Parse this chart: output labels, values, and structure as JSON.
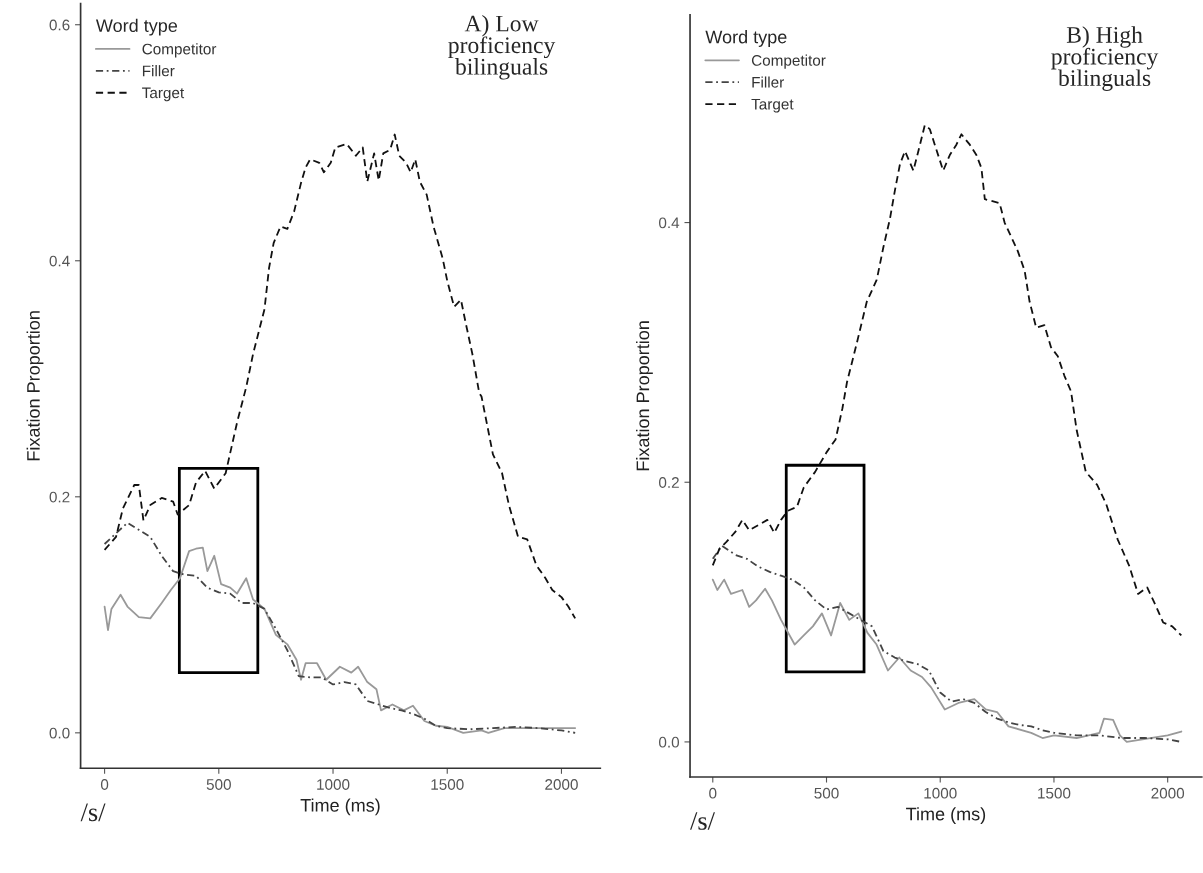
{
  "chart_data": [
    {
      "type": "line",
      "title": "A) Low\nproficiency\nbilinguals",
      "xlabel": "Time (ms)",
      "ylabel": "Fixation Proportion",
      "legend_title": "Word type",
      "legend": "top left",
      "grid": false,
      "annotations": [
        "/s/"
      ],
      "xlim": [
        -105,
        2170
      ],
      "ylim": [
        -0.03,
        0.618
      ],
      "xticks": [
        0,
        500,
        1000,
        1500,
        2000
      ],
      "yticks": [
        {
          "value": 0,
          "label": "0.0"
        },
        {
          "value": 0.2,
          "label": "0.2"
        },
        {
          "value": 0.4,
          "label": "0.4"
        },
        {
          "value": 0.6,
          "label": "0.6"
        }
      ],
      "series": [
        {
          "name": "Competitor",
          "color": "#999999",
          "line_style": "solid",
          "x": [
            0,
            15,
            30,
            70,
            100,
            150,
            200,
            250,
            290,
            330,
            370,
            400,
            430,
            450,
            480,
            510,
            550,
            580,
            620,
            650,
            700,
            750,
            800,
            840,
            860,
            880,
            930,
            970,
            1030,
            1080,
            1110,
            1150,
            1190,
            1210,
            1260,
            1310,
            1350,
            1400,
            1450,
            1500,
            1570,
            1650,
            1680,
            1750,
            2060
          ],
          "values": [
            0.107,
            0.087,
            0.105,
            0.117,
            0.107,
            0.098,
            0.097,
            0.11,
            0.121,
            0.131,
            0.154,
            0.156,
            0.157,
            0.137,
            0.15,
            0.126,
            0.123,
            0.118,
            0.131,
            0.113,
            0.105,
            0.083,
            0.075,
            0.062,
            0.045,
            0.059,
            0.059,
            0.045,
            0.056,
            0.051,
            0.056,
            0.043,
            0.037,
            0.019,
            0.024,
            0.019,
            0.023,
            0.01,
            0.006,
            0.005,
            0.0,
            0.002,
            0.0,
            0.004,
            0.004
          ]
        },
        {
          "name": "Filler",
          "color": "#444444",
          "line_style": "dashdot",
          "x": [
            0,
            50,
            100,
            150,
            200,
            250,
            300,
            350,
            400,
            450,
            500,
            550,
            600,
            650,
            700,
            750,
            800,
            850,
            900,
            950,
            1000,
            1050,
            1100,
            1150,
            1200,
            1250,
            1300,
            1350,
            1400,
            1450,
            1500,
            1600,
            1700,
            1800,
            1900,
            2000,
            2060
          ],
          "values": [
            0.16,
            0.169,
            0.178,
            0.172,
            0.166,
            0.15,
            0.137,
            0.134,
            0.133,
            0.123,
            0.119,
            0.118,
            0.11,
            0.11,
            0.105,
            0.088,
            0.07,
            0.048,
            0.047,
            0.047,
            0.041,
            0.043,
            0.041,
            0.027,
            0.024,
            0.021,
            0.019,
            0.016,
            0.012,
            0.006,
            0.004,
            0.003,
            0.004,
            0.005,
            0.004,
            0.002,
            0.0
          ]
        },
        {
          "name": "Target",
          "color": "#111111",
          "line_style": "dashed",
          "x": [
            0,
            50,
            80,
            130,
            150,
            170,
            200,
            250,
            300,
            320,
            370,
            400,
            440,
            480,
            530,
            580,
            620,
            650,
            700,
            720,
            740,
            770,
            800,
            830,
            860,
            880,
            900,
            940,
            960,
            990,
            1010,
            1060,
            1100,
            1130,
            1150,
            1180,
            1200,
            1220,
            1250,
            1270,
            1290,
            1320,
            1340,
            1360,
            1380,
            1410,
            1440,
            1480,
            1500,
            1530,
            1560,
            1580,
            1610,
            1640,
            1650,
            1700,
            1740,
            1770,
            1810,
            1850,
            1890,
            1930,
            1960,
            2000,
            2030,
            2060
          ],
          "values": [
            0.155,
            0.166,
            0.19,
            0.21,
            0.21,
            0.18,
            0.193,
            0.199,
            0.196,
            0.185,
            0.193,
            0.212,
            0.222,
            0.207,
            0.22,
            0.263,
            0.293,
            0.321,
            0.359,
            0.394,
            0.415,
            0.429,
            0.427,
            0.442,
            0.466,
            0.479,
            0.486,
            0.483,
            0.475,
            0.483,
            0.496,
            0.499,
            0.489,
            0.496,
            0.467,
            0.491,
            0.468,
            0.491,
            0.494,
            0.507,
            0.489,
            0.483,
            0.475,
            0.486,
            0.467,
            0.456,
            0.429,
            0.402,
            0.383,
            0.361,
            0.367,
            0.348,
            0.321,
            0.288,
            0.285,
            0.236,
            0.22,
            0.193,
            0.166,
            0.164,
            0.142,
            0.131,
            0.121,
            0.115,
            0.107,
            0.097
          ]
        }
      ]
    },
    {
      "type": "line",
      "title": "B) High\nproficiency\nbilinguals",
      "xlabel": "Time (ms)",
      "ylabel": "Fixation Proportion",
      "legend_title": "Word type",
      "legend": "top left",
      "grid": false,
      "annotations": [
        "/s/"
      ],
      "xlim": [
        -100,
        2150
      ],
      "ylim": [
        -0.027,
        0.56
      ],
      "xticks": [
        0,
        500,
        1000,
        1500,
        2000
      ],
      "yticks": [
        {
          "value": 0,
          "label": "0.0"
        },
        {
          "value": 0.2,
          "label": "0.2"
        },
        {
          "value": 0.4,
          "label": "0.4"
        }
      ],
      "series": [
        {
          "name": "Competitor",
          "color": "#999999",
          "line_style": "solid",
          "x": [
            0,
            20,
            50,
            80,
            130,
            160,
            190,
            230,
            260,
            300,
            360,
            400,
            440,
            480,
            520,
            560,
            600,
            640,
            680,
            720,
            770,
            820,
            870,
            920,
            960,
            1020,
            1080,
            1150,
            1200,
            1250,
            1300,
            1400,
            1450,
            1500,
            1600,
            1700,
            1720,
            1760,
            1790,
            1820,
            2000,
            2060
          ],
          "values": [
            0.125,
            0.117,
            0.125,
            0.114,
            0.117,
            0.104,
            0.109,
            0.118,
            0.109,
            0.094,
            0.075,
            0.082,
            0.089,
            0.099,
            0.082,
            0.107,
            0.094,
            0.099,
            0.084,
            0.075,
            0.055,
            0.065,
            0.055,
            0.05,
            0.042,
            0.025,
            0.03,
            0.033,
            0.025,
            0.023,
            0.012,
            0.007,
            0.003,
            0.005,
            0.003,
            0.007,
            0.018,
            0.017,
            0.005,
            0.0,
            0.005,
            0.008
          ]
        },
        {
          "name": "Filler",
          "color": "#444444",
          "line_style": "dashdot",
          "x": [
            0,
            40,
            100,
            150,
            200,
            250,
            300,
            350,
            400,
            450,
            500,
            550,
            600,
            650,
            700,
            750,
            800,
            850,
            900,
            950,
            1000,
            1050,
            1100,
            1150,
            1200,
            1250,
            1300,
            1350,
            1400,
            1450,
            1500,
            1600,
            1700,
            1800,
            1900,
            2000,
            2060
          ],
          "values": [
            0.141,
            0.151,
            0.144,
            0.141,
            0.135,
            0.131,
            0.128,
            0.125,
            0.119,
            0.109,
            0.102,
            0.104,
            0.099,
            0.094,
            0.089,
            0.07,
            0.065,
            0.062,
            0.06,
            0.055,
            0.038,
            0.031,
            0.033,
            0.03,
            0.023,
            0.018,
            0.015,
            0.013,
            0.012,
            0.009,
            0.007,
            0.005,
            0.005,
            0.003,
            0.003,
            0.002,
            0.0
          ]
        },
        {
          "name": "Target",
          "color": "#111111",
          "line_style": "dashed",
          "x": [
            0,
            30,
            60,
            100,
            130,
            160,
            200,
            240,
            270,
            300,
            330,
            370,
            400,
            450,
            500,
            540,
            570,
            590,
            633,
            677,
            721,
            750,
            779,
            801,
            823,
            845,
            882,
            911,
            932,
            954,
            976,
            1013,
            1042,
            1071,
            1093,
            1130,
            1159,
            1181,
            1196,
            1261,
            1283,
            1341,
            1371,
            1393,
            1422,
            1458,
            1487,
            1517,
            1546,
            1575,
            1600,
            1640,
            1690,
            1730,
            1780,
            1830,
            1870,
            1910,
            1950,
            1980,
            2020,
            2060
          ],
          "values": [
            0.136,
            0.149,
            0.154,
            0.162,
            0.171,
            0.163,
            0.167,
            0.171,
            0.161,
            0.171,
            0.178,
            0.181,
            0.196,
            0.208,
            0.223,
            0.233,
            0.257,
            0.277,
            0.307,
            0.339,
            0.356,
            0.381,
            0.403,
            0.425,
            0.445,
            0.455,
            0.44,
            0.46,
            0.475,
            0.472,
            0.46,
            0.44,
            0.452,
            0.46,
            0.468,
            0.46,
            0.452,
            0.442,
            0.418,
            0.415,
            0.4,
            0.378,
            0.363,
            0.339,
            0.319,
            0.321,
            0.304,
            0.297,
            0.282,
            0.27,
            0.24,
            0.208,
            0.198,
            0.183,
            0.156,
            0.136,
            0.114,
            0.119,
            0.104,
            0.092,
            0.089,
            0.082
          ]
        }
      ]
    }
  ]
}
